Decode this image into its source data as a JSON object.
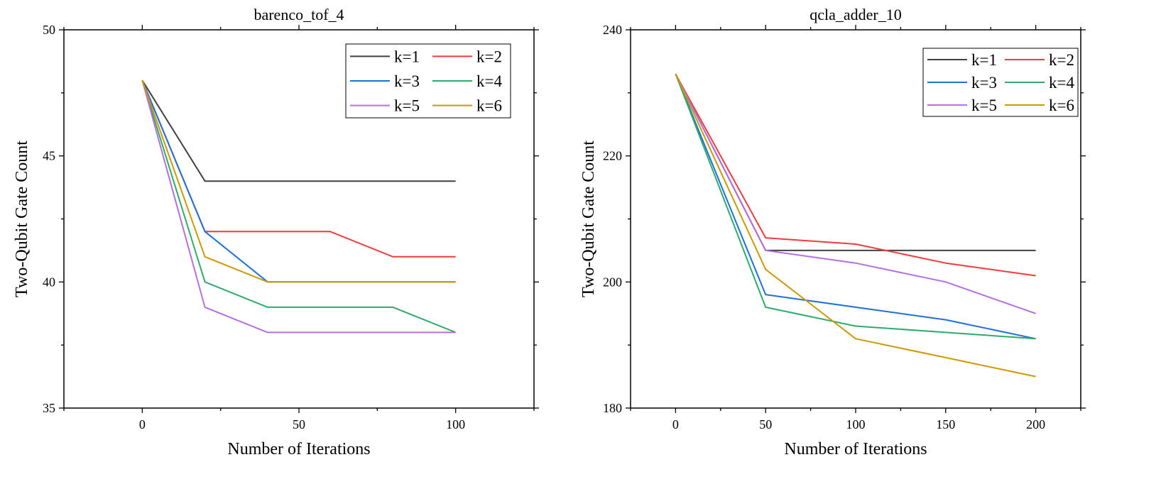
{
  "chart_data": [
    {
      "type": "line",
      "title": "barenco_tof_4",
      "xlabel": "Number of Iterations",
      "ylabel": "Two-Qubit Gate Count",
      "xlim": [
        -25,
        125
      ],
      "ylim": [
        35,
        50
      ],
      "xticks": [
        0,
        50,
        100
      ],
      "yticks": [
        35,
        40,
        45,
        50
      ],
      "x": [
        0,
        20,
        40,
        60,
        80,
        100
      ],
      "legend_position": "top-right",
      "series": [
        {
          "name": "k=1",
          "color": "#404040",
          "values": [
            48,
            44,
            44,
            44,
            44,
            44
          ]
        },
        {
          "name": "k=2",
          "color": "#f03c3c",
          "values": [
            48,
            42,
            42,
            42,
            41,
            41
          ]
        },
        {
          "name": "k=3",
          "color": "#1f6fd8",
          "values": [
            48,
            42,
            40,
            40,
            40,
            40
          ]
        },
        {
          "name": "k=4",
          "color": "#2eaa6a",
          "values": [
            48,
            40,
            39,
            39,
            39,
            38
          ]
        },
        {
          "name": "k=5",
          "color": "#b56fe0",
          "values": [
            48,
            39,
            38,
            38,
            38,
            38
          ]
        },
        {
          "name": "k=6",
          "color": "#cc9900",
          "values": [
            48,
            41,
            40,
            40,
            40,
            40
          ]
        }
      ]
    },
    {
      "type": "line",
      "title": "qcla_adder_10",
      "xlabel": "Number of Iterations",
      "ylabel": "Two-Qubit Gate Count",
      "xlim": [
        -25,
        225
      ],
      "ylim": [
        180,
        240
      ],
      "xticks": [
        0,
        50,
        100,
        150,
        200
      ],
      "yticks": [
        180,
        200,
        220,
        240
      ],
      "x": [
        0,
        50,
        100,
        150,
        200
      ],
      "legend_position": "top-right",
      "series": [
        {
          "name": "k=1",
          "color": "#404040",
          "values": [
            233,
            205,
            205,
            205,
            205
          ]
        },
        {
          "name": "k=2",
          "color": "#f03c3c",
          "values": [
            233,
            207,
            206,
            203,
            201
          ]
        },
        {
          "name": "k=3",
          "color": "#1f6fd8",
          "values": [
            233,
            198,
            196,
            194,
            191
          ]
        },
        {
          "name": "k=4",
          "color": "#2eaa6a",
          "values": [
            233,
            196,
            193,
            192,
            191
          ]
        },
        {
          "name": "k=5",
          "color": "#b56fe0",
          "values": [
            233,
            205,
            203,
            200,
            195
          ]
        },
        {
          "name": "k=6",
          "color": "#cc9900",
          "values": [
            233,
            202,
            191,
            188,
            185
          ]
        }
      ]
    }
  ]
}
